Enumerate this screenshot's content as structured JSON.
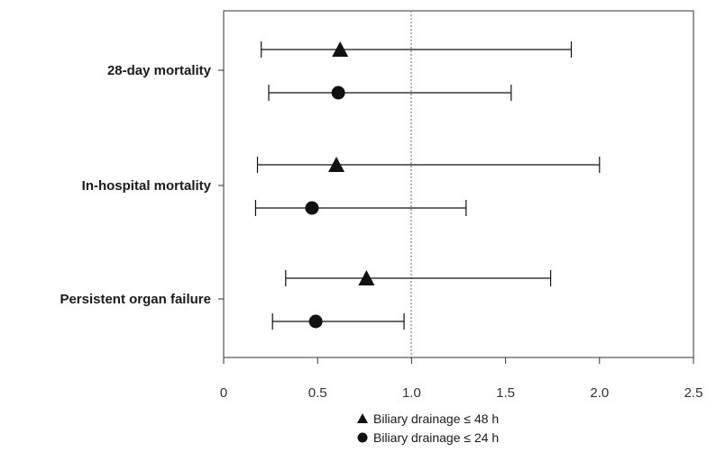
{
  "chart_data": {
    "type": "scatter",
    "subtype": "forest-plot",
    "categories": [
      "28-day mortality",
      "In-hospital mortality",
      "Persistent organ failure"
    ],
    "xlim": [
      0,
      2.5
    ],
    "xticks": [
      0,
      0.5,
      1.0,
      1.5,
      2.0,
      2.5
    ],
    "xtick_labels": [
      "0",
      "0.5",
      "1.0",
      "1.5",
      "2.0",
      "2.5"
    ],
    "reference_line": 1.0,
    "grid": false,
    "legend_position": "bottom-center",
    "series": [
      {
        "name": "Biliary drainage ≤ 48 h",
        "marker": "triangle",
        "points": [
          {
            "category": "28-day mortality",
            "estimate": 0.62,
            "lower": 0.2,
            "upper": 1.85
          },
          {
            "category": "In-hospital mortality",
            "estimate": 0.6,
            "lower": 0.18,
            "upper": 2.0
          },
          {
            "category": "Persistent organ failure",
            "estimate": 0.76,
            "lower": 0.33,
            "upper": 1.74
          }
        ]
      },
      {
        "name": "Biliary drainage ≤ 24 h",
        "marker": "circle",
        "points": [
          {
            "category": "28-day mortality",
            "estimate": 0.61,
            "lower": 0.24,
            "upper": 1.53
          },
          {
            "category": "In-hospital mortality",
            "estimate": 0.47,
            "lower": 0.17,
            "upper": 1.29
          },
          {
            "category": "Persistent organ failure",
            "estimate": 0.49,
            "lower": 0.26,
            "upper": 0.96
          }
        ]
      }
    ],
    "colors": {
      "marker": "#111111",
      "axis": "#333333",
      "reference": "#666666"
    }
  }
}
